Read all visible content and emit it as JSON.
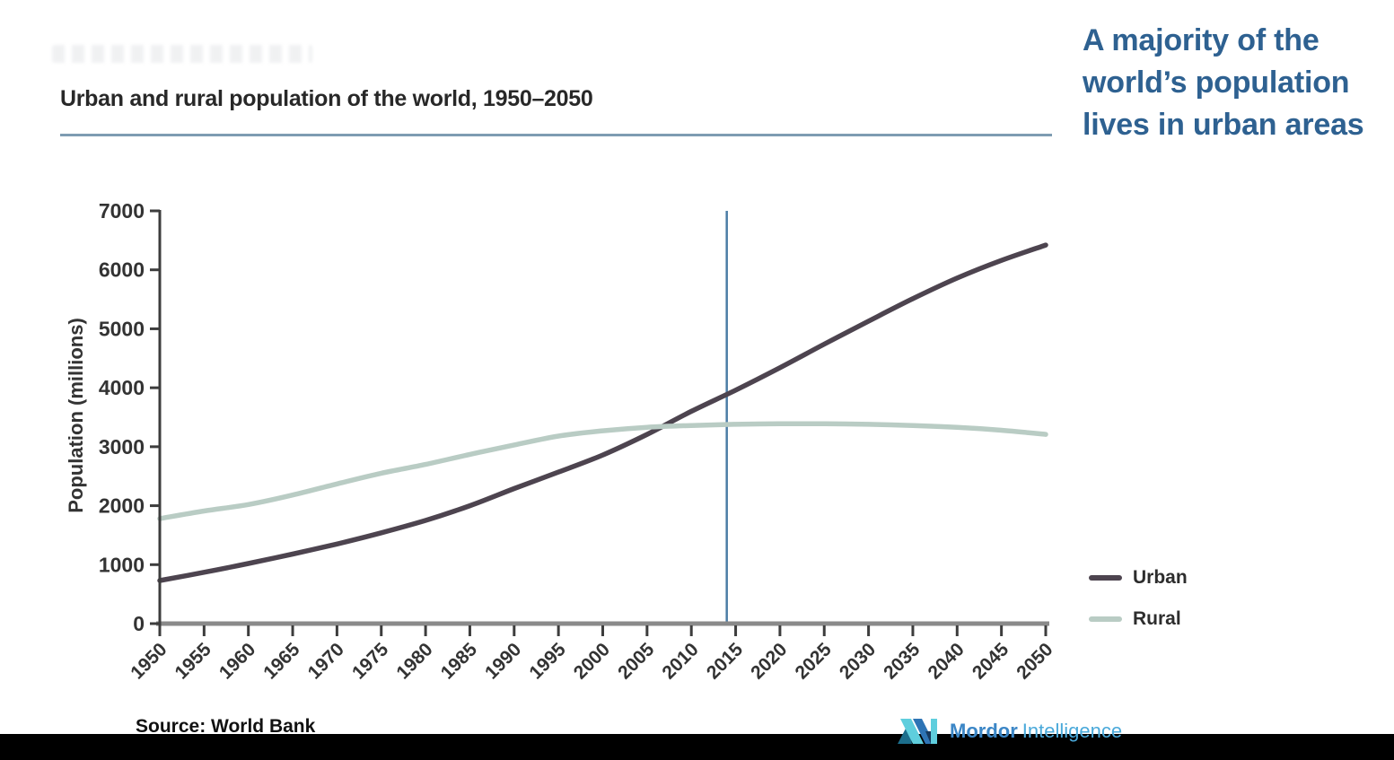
{
  "page": {
    "title": "Urban and rural population of the world, 1950–2050",
    "headline": "A majority of the world’s population lives in urban areas",
    "source_label": "Source: World Bank",
    "brand": {
      "name_primary": "Mordor",
      "name_secondary": "Intelligence"
    }
  },
  "chart_data": {
    "type": "line",
    "title": "Urban and rural population of the world, 1950–2050",
    "xlabel": "",
    "ylabel": "Population (millions)",
    "x": [
      1950,
      1955,
      1960,
      1965,
      1970,
      1975,
      1980,
      1985,
      1990,
      1995,
      2000,
      2005,
      2010,
      2015,
      2020,
      2025,
      2030,
      2035,
      2040,
      2045,
      2050
    ],
    "series": [
      {
        "name": "Urban",
        "color": "#4d444f",
        "values": [
          730,
          870,
          1020,
          1180,
          1350,
          1540,
          1750,
          2000,
          2290,
          2570,
          2860,
          3210,
          3600,
          3960,
          4340,
          4740,
          5130,
          5510,
          5860,
          6160,
          6420
        ]
      },
      {
        "name": "Rural",
        "color": "#b9ccc4",
        "values": [
          1780,
          1910,
          2020,
          2180,
          2370,
          2550,
          2700,
          2870,
          3030,
          3180,
          3270,
          3330,
          3360,
          3380,
          3390,
          3390,
          3380,
          3360,
          3330,
          3280,
          3210
        ]
      }
    ],
    "xlim": [
      1950,
      2050
    ],
    "ylim": [
      0,
      7000
    ],
    "yticks": [
      0,
      1000,
      2000,
      3000,
      4000,
      5000,
      6000,
      7000
    ],
    "marker_line": {
      "x": 2014,
      "color": "#4c7da6"
    },
    "grid": false,
    "legend_position": "right"
  },
  "colors": {
    "heading_blue": "#2e6191",
    "title_rule": "#7e9cb2",
    "x_axis": "#8a8a8a",
    "y_axis": "#3d3d3d",
    "bottom_bar": "#000000"
  }
}
